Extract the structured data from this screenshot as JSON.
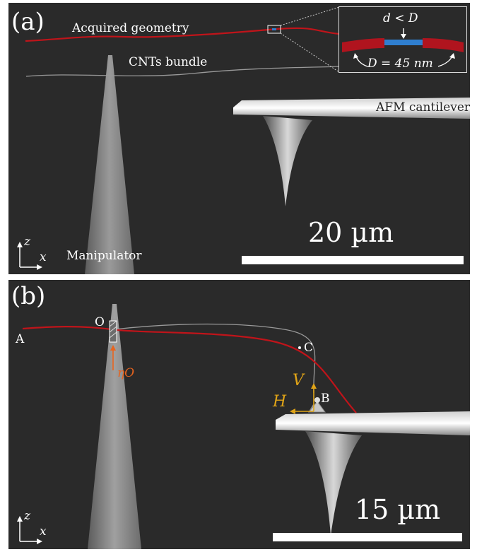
{
  "panel_a": {
    "panel_label": "(a)",
    "acquired_geometry": "Acquired geometry",
    "cnts_bundle": "CNTs bundle",
    "afm_cantilever": "AFM cantilever",
    "manipulator": "Manipulator",
    "scale_label": "20 µm",
    "axis_z": "z",
    "axis_x": "x",
    "inset": {
      "top": "d < D",
      "bottom": "D = 45 nm"
    }
  },
  "panel_b": {
    "panel_label": "(b)",
    "point_a": "A",
    "point_o": "O",
    "point_b": "B",
    "point_c": "C",
    "eta_o": "ηO",
    "force_v": "V",
    "force_h": "H",
    "scale_label": "15 µm",
    "axis_z": "z",
    "axis_x": "x"
  },
  "colors": {
    "background": "#2a2a2a",
    "geometry_line": "#c0141a",
    "inset_blue": "#2f7fd0",
    "force_arrows": "#e0a417",
    "eta_arrow": "#e8641e"
  }
}
